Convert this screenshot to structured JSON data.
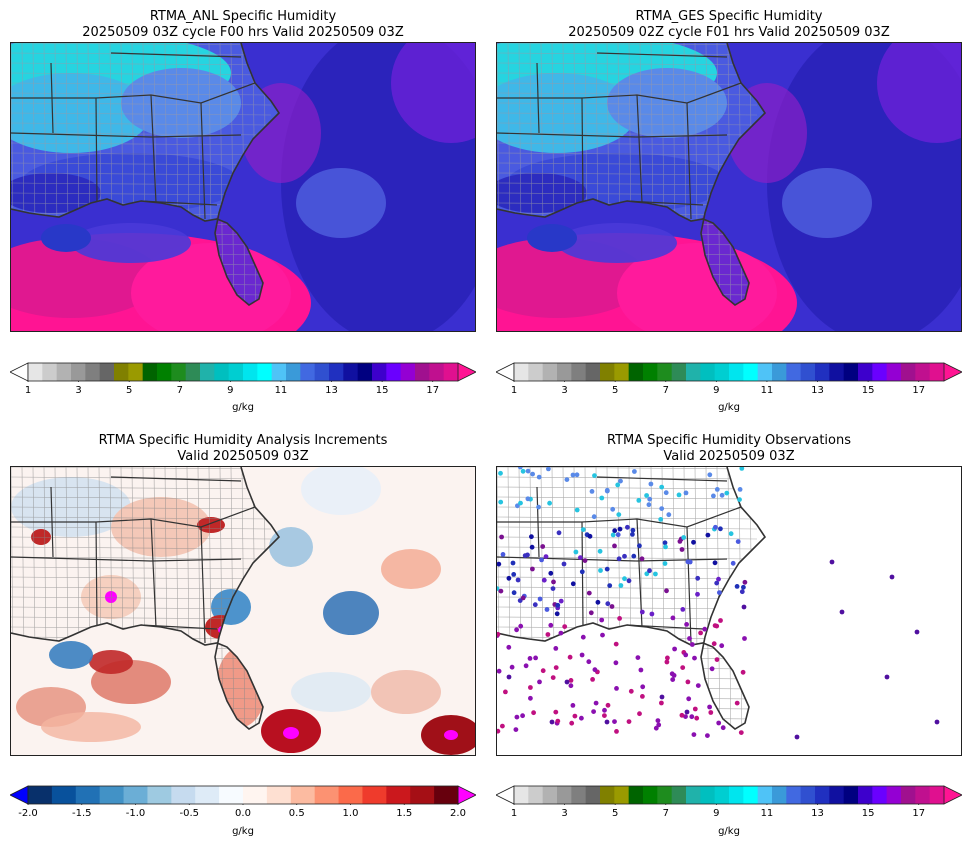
{
  "chart_data": [
    {
      "type": "heatmap",
      "title": "RTMA_ANL Specific Humidity",
      "subtitle": "20250509 03Z cycle F00 hrs Valid 20250509 03Z",
      "colorbar": {
        "label": "g/kg",
        "ticks": [
          "1",
          "3",
          "5",
          "7",
          "9",
          "11",
          "13",
          "15",
          "17"
        ],
        "range": [
          1,
          18
        ]
      }
    },
    {
      "type": "heatmap",
      "title": "RTMA_GES Specific Humidity",
      "subtitle": "20250509 02Z cycle F01 hrs Valid 20250509 03Z",
      "colorbar": {
        "label": "g/kg",
        "ticks": [
          "1",
          "3",
          "5",
          "7",
          "9",
          "11",
          "13",
          "15",
          "17"
        ],
        "range": [
          1,
          18
        ]
      }
    },
    {
      "type": "heatmap",
      "title": "RTMA Specific Humidity Analysis Increments",
      "subtitle": "Valid 20250509 03Z",
      "colorbar": {
        "label": "g/kg",
        "ticks": [
          "-2.0",
          "-1.5",
          "-1.0",
          "-0.5",
          "0.0",
          "0.5",
          "1.0",
          "1.5",
          "2.0"
        ],
        "range": [
          -2.0,
          2.0
        ]
      }
    },
    {
      "type": "scatter",
      "title": "RTMA Specific Humidity Observations",
      "subtitle": "Valid 20250509 03Z",
      "colorbar": {
        "label": "g/kg",
        "ticks": [
          "1",
          "3",
          "5",
          "7",
          "9",
          "11",
          "13",
          "15",
          "17"
        ],
        "range": [
          1,
          18
        ]
      }
    }
  ],
  "colors": {
    "humidity_scale": [
      "#ffffff",
      "#e6e6e6",
      "#cccccc",
      "#b2b2b2",
      "#999999",
      "#7f7f7f",
      "#666666",
      "#808000",
      "#9a9a00",
      "#006400",
      "#008000",
      "#1e8c1e",
      "#2e8b57",
      "#20b2aa",
      "#00bfbf",
      "#00ced1",
      "#00e5ee",
      "#00ffff",
      "#4fc3f7",
      "#3a9ad9",
      "#4169e1",
      "#3050d0",
      "#2030c0",
      "#1010a0",
      "#000080",
      "#3d00cc",
      "#6a00ff",
      "#9400d3",
      "#a0108f",
      "#c0108f",
      "#e0108f",
      "#ff1493"
    ],
    "increment_scale": [
      "#0000ff",
      "#08306b",
      "#08519c",
      "#2171b5",
      "#4292c6",
      "#6baed6",
      "#9ecae1",
      "#c6dbef",
      "#deebf7",
      "#f7fbff",
      "#fff5f0",
      "#fee0d2",
      "#fcbba1",
      "#fc9272",
      "#fb6a4a",
      "#ef3b2c",
      "#cb181d",
      "#a50f15",
      "#67000d",
      "#ff00ff"
    ]
  }
}
